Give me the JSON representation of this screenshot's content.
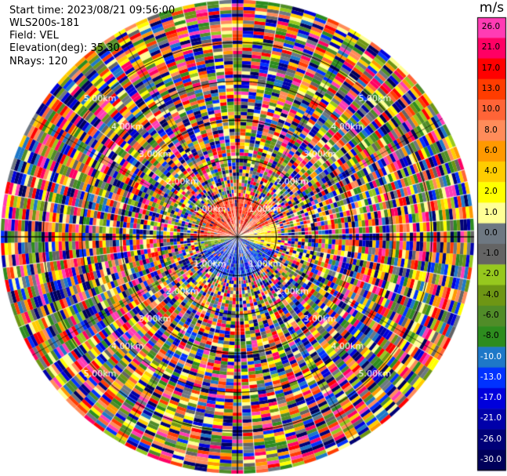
{
  "header": {
    "start_time": "Start time: 2023/08/21 09:56:00",
    "instrument": "WLS200s-181",
    "field": "Field: VEL",
    "elevation": "Elevation(deg): 35.30",
    "nrays": "NRays: 120"
  },
  "colorbar": {
    "unit": "m/s",
    "levels": [
      26.0,
      21.0,
      17.0,
      13.0,
      10.0,
      8.0,
      6.0,
      4.0,
      2.0,
      1.0,
      0.0,
      -1.0,
      -2.0,
      -4.0,
      -6.0,
      -8.0,
      -10.0,
      -13.0,
      -17.0,
      -21.0,
      -26.0,
      -30.0
    ],
    "labels": [
      "26.0",
      "21.0",
      "17.0",
      "13.0",
      "10.0",
      "8.0",
      "6.0",
      "4.0",
      "2.0",
      "1.0",
      "0.0",
      "-1.0",
      "-2.0",
      "-4.0",
      "-6.0",
      "-8.0",
      "-10.0",
      "-13.0",
      "-17.0",
      "-21.0",
      "-26.0",
      "-30.0"
    ],
    "colors": [
      "#ff3cb4",
      "#ff0064",
      "#ff0000",
      "#ff3c00",
      "#ff6437",
      "#ff8c5a",
      "#ff9900",
      "#ffcc00",
      "#ffff00",
      "#ffff96",
      "#6e7882",
      "#646464",
      "#96c81e",
      "#6e9614",
      "#508c28",
      "#2d8c1e",
      "#1e78c8",
      "#0032ff",
      "#0000dc",
      "#0000aa",
      "#000078",
      "#00005a"
    ],
    "light_label_indices": [
      16,
      17,
      18,
      19,
      20,
      21
    ]
  },
  "chart_data": {
    "type": "heatmap",
    "subtype": "polar-ppi",
    "field": "VEL",
    "units": "m/s",
    "nrays": 120,
    "value_range": [
      -30.0,
      26.0
    ],
    "range_ring_labels": [
      "1.00km",
      "2.00km",
      "3.00km",
      "4.00km",
      "5.00km"
    ],
    "range_rings_km": [
      1.0,
      2.0,
      3.0,
      4.0,
      5.0
    ],
    "max_range_km": 7.0,
    "gates_per_ray": 70,
    "description_of_pattern": {
      "inner_radius_km": 1.2,
      "north_half_inner": "positive velocities (red/orange)",
      "east_sector_inner": "yellow (2.0 to 4.0)",
      "south_half_inner": "negative velocities (blue)",
      "outer": "noise across full scale"
    }
  }
}
